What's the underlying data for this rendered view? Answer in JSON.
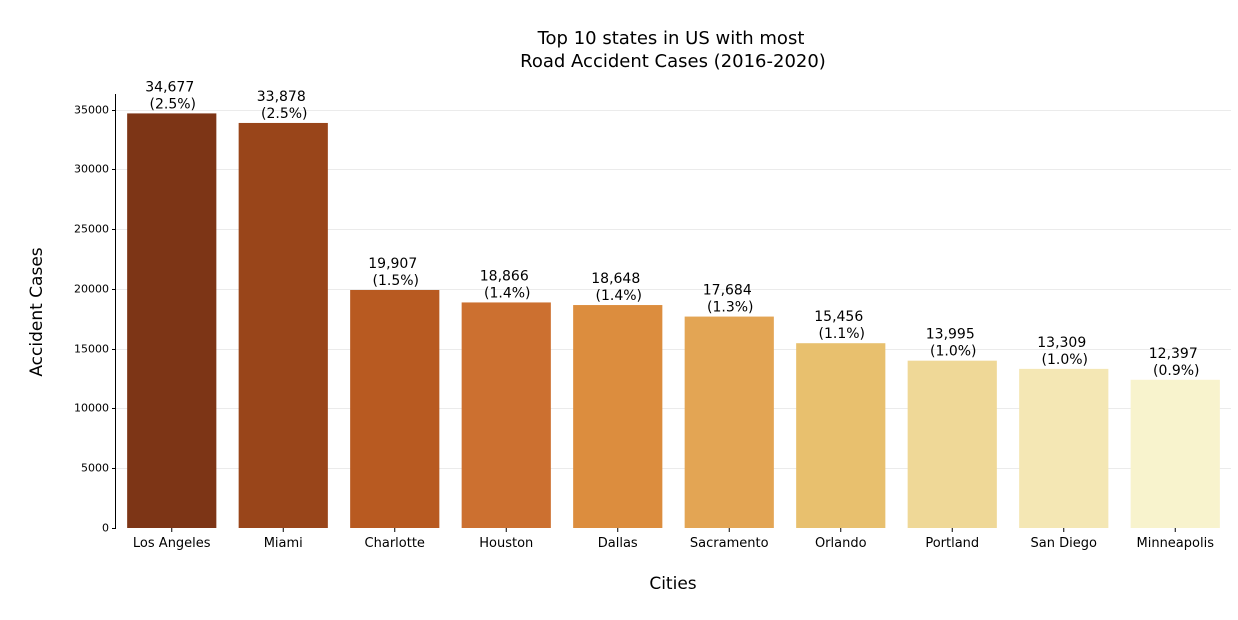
{
  "chart_data": {
    "type": "bar",
    "title_lines": [
      "Top 10 states in US with most",
      "Road Accident Cases (2016-2020)"
    ],
    "xlabel": "Cities",
    "ylabel": "Accident Cases",
    "categories": [
      "Los Angeles",
      "Miami",
      "Charlotte",
      "Houston",
      "Dallas",
      "Sacramento",
      "Orlando",
      "Portland",
      "San Diego",
      "Minneapolis"
    ],
    "values": [
      34677,
      33878,
      19907,
      18866,
      18648,
      17684,
      15456,
      13995,
      13309,
      12397
    ],
    "value_labels": [
      "34,677",
      "33,878",
      "19,907",
      "18,866",
      "18,648",
      "17,684",
      "15,456",
      "13,995",
      "13,309",
      "12,397"
    ],
    "percent_labels": [
      "(2.5%)",
      "(2.5%)",
      "(1.5%)",
      "(1.4%)",
      "(1.4%)",
      "(1.3%)",
      "(1.1%)",
      "(1.0%)",
      "(1.0%)",
      "(0.9%)"
    ],
    "colors": [
      "#7d3516",
      "#99451a",
      "#b85a21",
      "#cc7030",
      "#dc8d3e",
      "#e3a554",
      "#e8c06e",
      "#efd897",
      "#f4e7b4",
      "#f8f3cd"
    ],
    "ylim": [
      0,
      36300
    ],
    "yticks": [
      0,
      5000,
      10000,
      15000,
      20000,
      25000,
      30000,
      35000
    ],
    "grid": true,
    "legend": "none"
  }
}
